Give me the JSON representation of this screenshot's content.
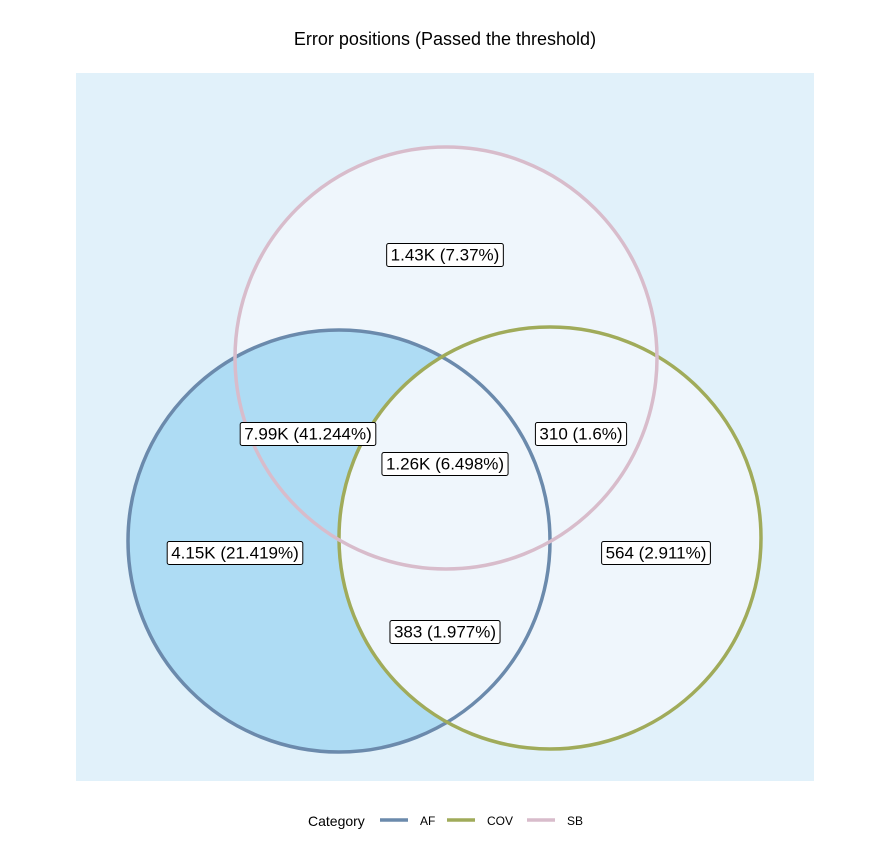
{
  "chart_data": {
    "type": "venn",
    "title": "Error positions (Passed the threshold)",
    "sets": [
      {
        "name": "AF",
        "color": "#6b8aac"
      },
      {
        "name": "COV",
        "color": "#a0ab5a"
      },
      {
        "name": "SB",
        "color": "#d8bccb"
      }
    ],
    "regions": [
      {
        "sets": [
          "SB"
        ],
        "count": "1.43K",
        "percent": "7.37%",
        "label": "1.43K (7.37%)"
      },
      {
        "sets": [
          "AF",
          "SB"
        ],
        "count": "7.99K",
        "percent": "41.244%",
        "label": "7.99K (41.244%)"
      },
      {
        "sets": [
          "COV",
          "SB"
        ],
        "count": "310",
        "percent": "1.6%",
        "label": "310 (1.6%)"
      },
      {
        "sets": [
          "AF",
          "COV",
          "SB"
        ],
        "count": "1.26K",
        "percent": "6.498%",
        "label": "1.26K (6.498%)"
      },
      {
        "sets": [
          "AF"
        ],
        "count": "4.15K",
        "percent": "21.419%",
        "label": "4.15K (21.419%)"
      },
      {
        "sets": [
          "COV"
        ],
        "count": "564",
        "percent": "2.911%",
        "label": "564 (2.911%)"
      },
      {
        "sets": [
          "AF",
          "COV"
        ],
        "count": "383",
        "percent": "1.977%",
        "label": "383 (1.977%)"
      }
    ],
    "fill_colors": {
      "background": "#e1f1fa",
      "low": "#eff6fc",
      "high": "#aedcf4"
    },
    "legend": {
      "title": "Category",
      "position": "bottom",
      "items": [
        "AF",
        "COV",
        "SB"
      ]
    }
  }
}
